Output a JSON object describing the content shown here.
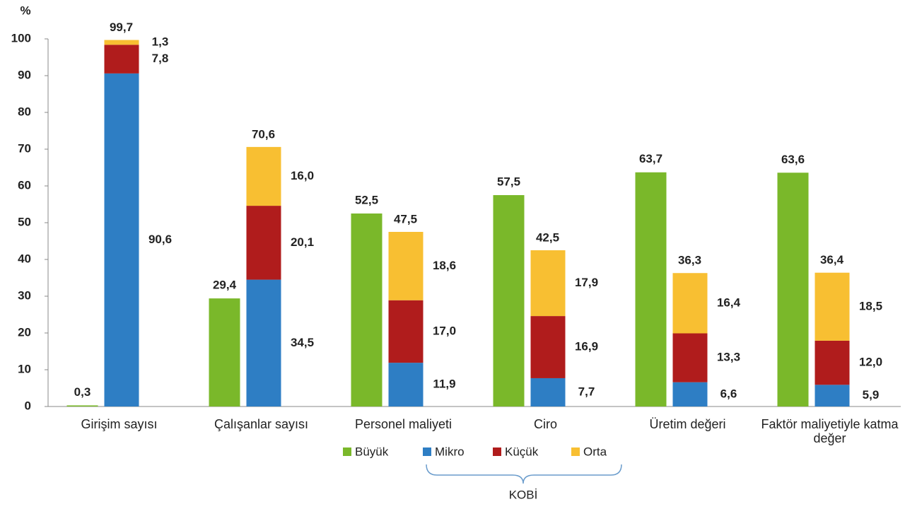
{
  "chart_data": {
    "type": "grouped-stacked-bar",
    "y_label": "%",
    "categories": [
      "Girişim sayısı",
      "Çalışanlar sayısı",
      "Personel maliyeti",
      "Ciro",
      "Üretim değeri",
      "Faktör maliyetiyle katma değer"
    ],
    "series": [
      {
        "name": "Büyük",
        "color": "#7ab82a",
        "stacked": false,
        "values": [
          0.3,
          29.4,
          52.5,
          57.5,
          63.7,
          63.6
        ],
        "value_labels": [
          "0,3",
          "29,4",
          "52,5",
          "57,5",
          "63,7",
          "63,6"
        ]
      },
      {
        "name": "Mikro",
        "color": "#2e7ec4",
        "stacked": true,
        "values": [
          90.6,
          34.5,
          11.9,
          7.7,
          6.6,
          5.9
        ],
        "value_labels": [
          "90,6",
          "34,5",
          "11,9",
          "7,7",
          "6,6",
          "5,9"
        ]
      },
      {
        "name": "Küçük",
        "color": "#b01c1c",
        "stacked": true,
        "values": [
          7.8,
          20.1,
          17.0,
          16.9,
          13.3,
          12.0
        ],
        "value_labels": [
          "7,8",
          "20,1",
          "17,0",
          "16,9",
          "13,3",
          "12,0"
        ]
      },
      {
        "name": "Orta",
        "color": "#f8bf32",
        "stacked": true,
        "values": [
          1.3,
          16.0,
          18.6,
          17.9,
          16.4,
          18.5
        ],
        "value_labels": [
          "1,3",
          "16,0",
          "18,6",
          "17,9",
          "16,4",
          "18,5"
        ]
      }
    ],
    "group_label": "KOBİ",
    "group_totals": [
      99.7,
      70.6,
      47.5,
      42.5,
      36.3,
      36.4
    ],
    "group_total_labels": [
      "99,7",
      "70,6",
      "47,5",
      "42,5",
      "36,3",
      "36,4"
    ],
    "ylim": [
      0,
      100
    ],
    "yticks": [
      0,
      10,
      20,
      30,
      40,
      50,
      60,
      70,
      80,
      90,
      100
    ],
    "grid": false
  }
}
